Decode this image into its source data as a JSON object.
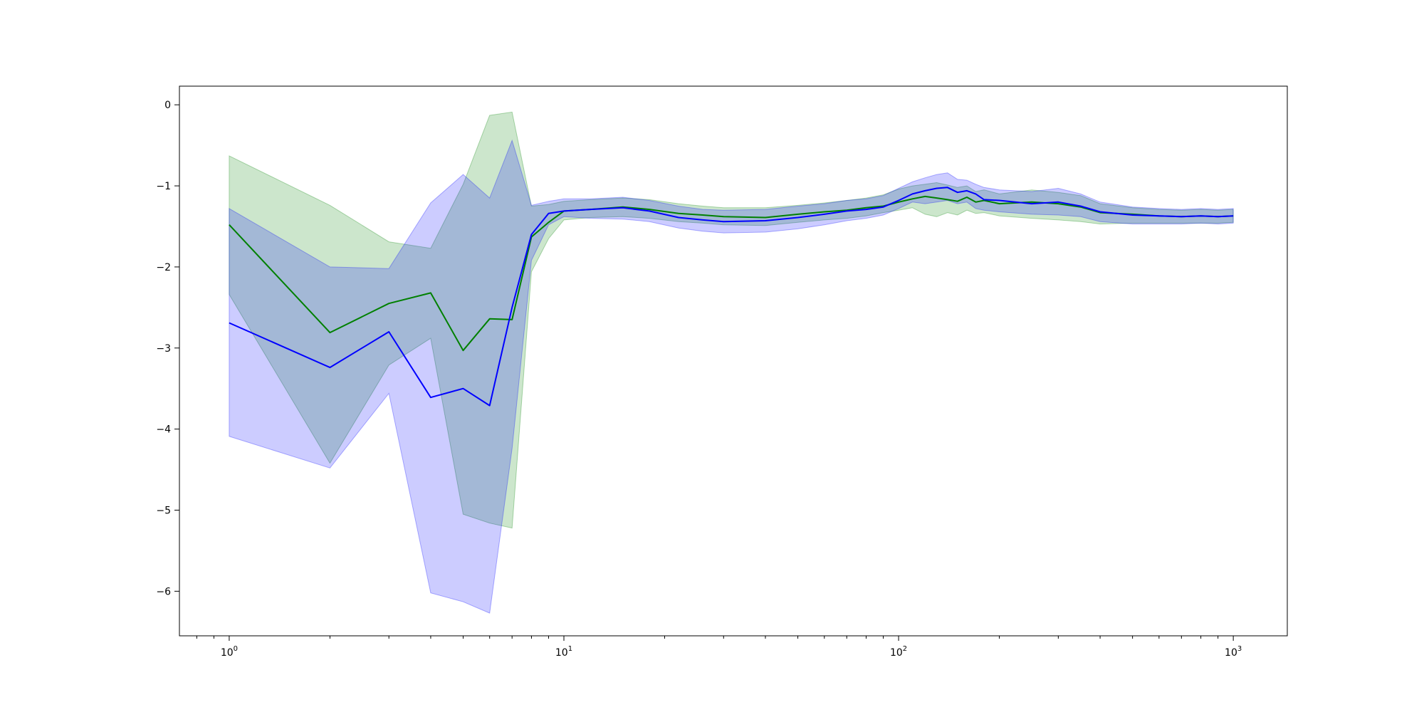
{
  "chart_data": {
    "type": "line",
    "title": "",
    "xlabel": "",
    "ylabel": "",
    "xscale": "log",
    "xlim": [
      0.71,
      1450
    ],
    "ylim": [
      -6.55,
      0.23
    ],
    "grid": false,
    "legend": "none",
    "x_ticks": [
      {
        "value": 1,
        "base": "10",
        "exp": "0"
      },
      {
        "value": 10,
        "base": "10",
        "exp": "1"
      },
      {
        "value": 100,
        "base": "10",
        "exp": "2"
      },
      {
        "value": 1000,
        "base": "10",
        "exp": "3"
      }
    ],
    "y_ticks": [
      {
        "value": 0,
        "label": "0"
      },
      {
        "value": -1,
        "label": "−1"
      },
      {
        "value": -2,
        "label": "−2"
      },
      {
        "value": -3,
        "label": "−3"
      },
      {
        "value": -4,
        "label": "−4"
      },
      {
        "value": -5,
        "label": "−5"
      },
      {
        "value": -6,
        "label": "−6"
      }
    ],
    "series": [
      {
        "color": "#008000",
        "band_color": "#008000",
        "band_opacity": 0.2,
        "x": [
          1,
          2,
          3,
          4,
          5,
          6,
          7,
          8,
          9,
          10,
          12,
          15,
          18,
          22,
          26,
          30,
          40,
          50,
          60,
          70,
          80,
          90,
          100,
          110,
          120,
          130,
          140,
          150,
          160,
          170,
          180,
          200,
          250,
          300,
          350,
          400,
          500,
          600,
          700,
          800,
          900,
          1000
        ],
        "y": [
          -1.48,
          -2.81,
          -2.45,
          -2.32,
          -3.03,
          -2.64,
          -2.65,
          -1.63,
          -1.45,
          -1.31,
          -1.29,
          -1.26,
          -1.29,
          -1.34,
          -1.36,
          -1.38,
          -1.39,
          -1.35,
          -1.32,
          -1.3,
          -1.27,
          -1.25,
          -1.2,
          -1.16,
          -1.13,
          -1.15,
          -1.17,
          -1.19,
          -1.14,
          -1.2,
          -1.18,
          -1.22,
          -1.2,
          -1.22,
          -1.26,
          -1.33,
          -1.35,
          -1.37,
          -1.38,
          -1.37,
          -1.38,
          -1.37
        ],
        "y_low": [
          -2.34,
          -4.42,
          -3.21,
          -2.88,
          -5.05,
          -5.16,
          -5.22,
          -2.06,
          -1.65,
          -1.42,
          -1.39,
          -1.38,
          -1.4,
          -1.44,
          -1.46,
          -1.48,
          -1.49,
          -1.45,
          -1.42,
          -1.4,
          -1.37,
          -1.33,
          -1.3,
          -1.27,
          -1.35,
          -1.38,
          -1.33,
          -1.36,
          -1.3,
          -1.34,
          -1.33,
          -1.37,
          -1.4,
          -1.42,
          -1.44,
          -1.47,
          -1.46,
          -1.46,
          -1.46,
          -1.46,
          -1.46,
          -1.45
        ],
        "y_high": [
          -0.63,
          -1.24,
          -1.69,
          -1.77,
          -0.98,
          -0.13,
          -0.09,
          -1.25,
          -1.23,
          -1.19,
          -1.17,
          -1.15,
          -1.17,
          -1.22,
          -1.25,
          -1.27,
          -1.27,
          -1.24,
          -1.21,
          -1.18,
          -1.15,
          -1.11,
          -1.04,
          -1.0,
          -0.98,
          -0.96,
          -0.99,
          -1.02,
          -1.0,
          -1.07,
          -1.05,
          -1.1,
          -1.05,
          -1.08,
          -1.12,
          -1.22,
          -1.27,
          -1.29,
          -1.3,
          -1.29,
          -1.3,
          -1.29
        ]
      },
      {
        "color": "#0000ff",
        "band_color": "#0000ff",
        "band_opacity": 0.2,
        "x": [
          1,
          2,
          3,
          4,
          5,
          6,
          7,
          8,
          9,
          10,
          12,
          15,
          18,
          22,
          26,
          30,
          40,
          50,
          60,
          70,
          80,
          90,
          100,
          110,
          120,
          130,
          140,
          150,
          160,
          170,
          180,
          200,
          250,
          300,
          350,
          400,
          500,
          600,
          700,
          800,
          900,
          1000
        ],
        "y": [
          -2.69,
          -3.24,
          -2.8,
          -3.61,
          -3.5,
          -3.71,
          -2.5,
          -1.6,
          -1.34,
          -1.31,
          -1.29,
          -1.27,
          -1.31,
          -1.39,
          -1.42,
          -1.44,
          -1.43,
          -1.39,
          -1.35,
          -1.31,
          -1.29,
          -1.26,
          -1.18,
          -1.1,
          -1.06,
          -1.03,
          -1.02,
          -1.08,
          -1.06,
          -1.1,
          -1.17,
          -1.18,
          -1.22,
          -1.2,
          -1.25,
          -1.32,
          -1.36,
          -1.37,
          -1.38,
          -1.37,
          -1.38,
          -1.37
        ],
        "y_low": [
          -4.09,
          -4.48,
          -3.56,
          -6.02,
          -6.13,
          -6.27,
          -4.24,
          -1.92,
          -1.48,
          -1.38,
          -1.4,
          -1.41,
          -1.44,
          -1.52,
          -1.56,
          -1.58,
          -1.57,
          -1.53,
          -1.48,
          -1.43,
          -1.4,
          -1.36,
          -1.28,
          -1.2,
          -1.22,
          -1.2,
          -1.18,
          -1.22,
          -1.2,
          -1.28,
          -1.3,
          -1.32,
          -1.35,
          -1.36,
          -1.38,
          -1.44,
          -1.47,
          -1.47,
          -1.47,
          -1.46,
          -1.47,
          -1.46
        ],
        "y_high": [
          -1.28,
          -2.0,
          -2.02,
          -1.21,
          -0.86,
          -1.15,
          -0.44,
          -1.24,
          -1.19,
          -1.16,
          -1.16,
          -1.14,
          -1.18,
          -1.25,
          -1.29,
          -1.3,
          -1.29,
          -1.25,
          -1.22,
          -1.18,
          -1.16,
          -1.12,
          -1.03,
          -0.95,
          -0.9,
          -0.86,
          -0.84,
          -0.92,
          -0.93,
          -0.98,
          -1.02,
          -1.05,
          -1.07,
          -1.03,
          -1.1,
          -1.2,
          -1.26,
          -1.28,
          -1.29,
          -1.28,
          -1.29,
          -1.28
        ]
      }
    ]
  }
}
